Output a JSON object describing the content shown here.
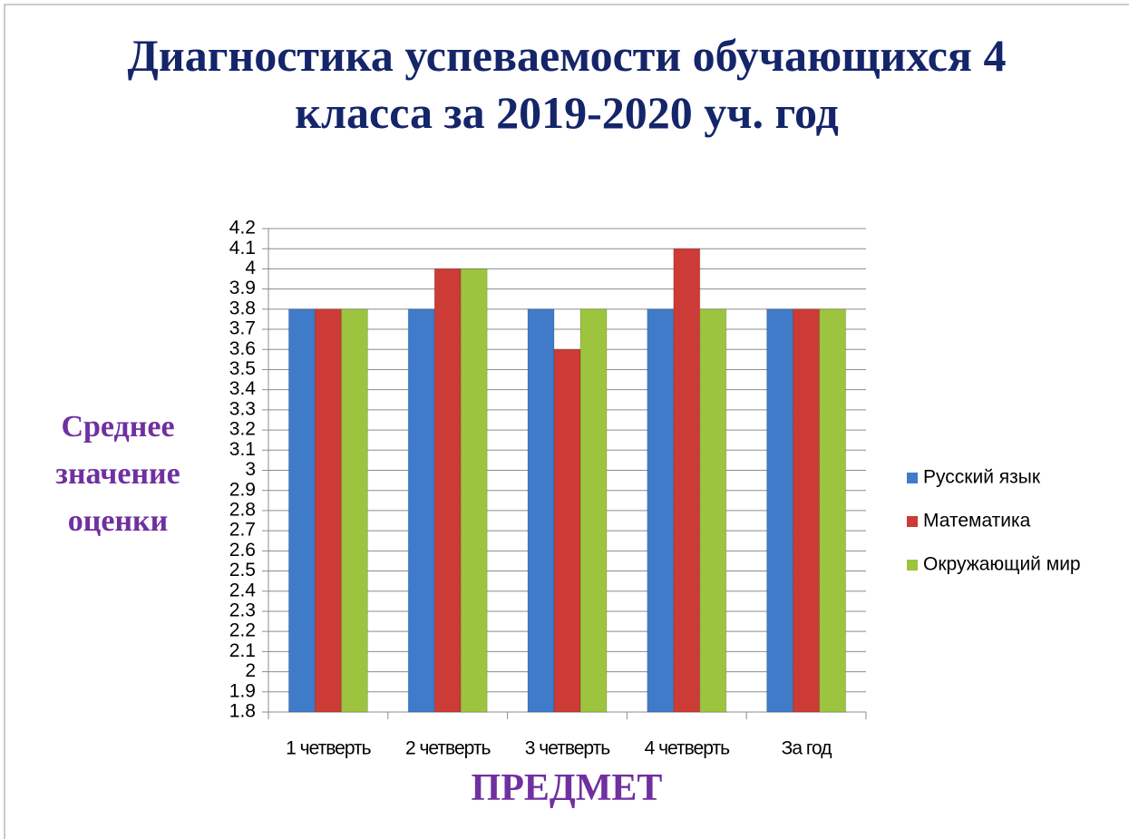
{
  "chart_data": {
    "type": "bar",
    "title": "Диагностика успеваемости обучающихся 4 класса за 2019-2020 уч. год",
    "y_label": "Среднее значение оценки",
    "x_label": "ПРЕДМЕТ",
    "categories": [
      "1 четверть",
      "2 четверть",
      "3 четверть",
      "4 четверть",
      "За год"
    ],
    "series": [
      {
        "name": "Русский язык",
        "color": "#3f7bc9",
        "values": [
          3.8,
          3.8,
          3.8,
          3.8,
          3.8
        ]
      },
      {
        "name": "Математика",
        "color": "#cc3b35",
        "values": [
          3.8,
          4.0,
          3.6,
          4.1,
          3.8
        ]
      },
      {
        "name": "Окружающий мир",
        "color": "#9cc43e",
        "values": [
          3.8,
          4.0,
          3.8,
          3.8,
          3.8
        ]
      }
    ],
    "ylim": [
      1.8,
      4.2
    ],
    "yticks": [
      1.8,
      1.9,
      2,
      2.1,
      2.2,
      2.3,
      2.4,
      2.5,
      2.6,
      2.7,
      2.8,
      2.9,
      3,
      3.1,
      3.2,
      3.3,
      3.4,
      3.5,
      3.6,
      3.7,
      3.8,
      3.9,
      4,
      4.1,
      4.2
    ],
    "grid": true,
    "legend": "right"
  }
}
